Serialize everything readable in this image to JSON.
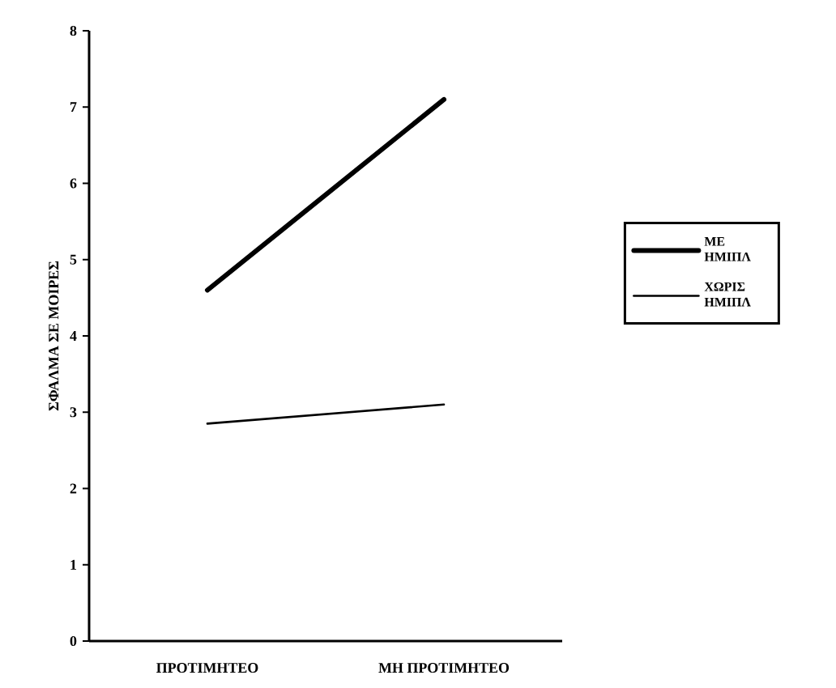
{
  "chart_data": {
    "type": "line",
    "ylabel": "ΣΦΑΛΜΑ ΣΕ ΜΟΙΡΕΣ",
    "categories": [
      "ΠΡΟΤΙΜΗΤΕΟ",
      "ΜΗ ΠΡΟΤΙΜΗΤΕΟ"
    ],
    "series": [
      {
        "name": "ΜΕ ΗΜΙΠΛ",
        "color": "#000000",
        "values": [
          4.6,
          7.1
        ]
      },
      {
        "name": "ΧΩΡΙΣ ΗΜΙΠΛ",
        "color": "#000000",
        "values": [
          2.85,
          3.1
        ]
      }
    ],
    "ylim": [
      0,
      8
    ],
    "yticks": [
      0,
      1,
      2,
      3,
      4,
      5,
      6,
      7,
      8
    ],
    "legend": "right",
    "grid": false,
    "marker": "none",
    "line_style": "solid"
  }
}
